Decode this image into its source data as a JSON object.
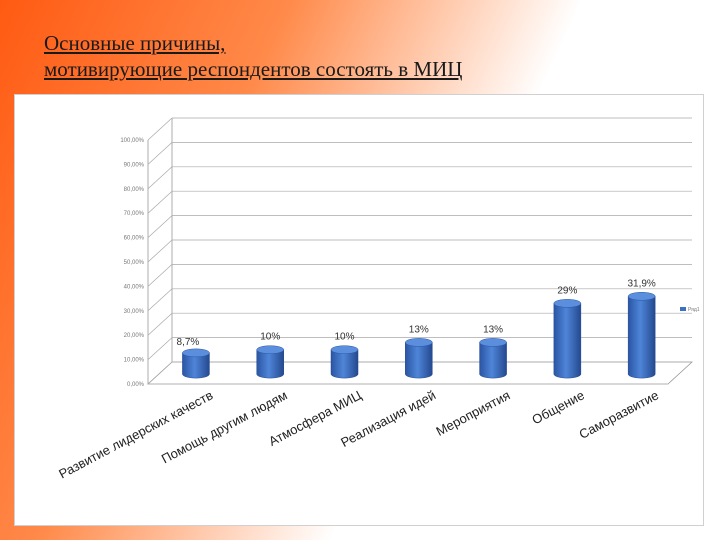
{
  "title": {
    "line1": "Основные причины,",
    "line2": "мотивирующие респондентов состоять в МИЦ"
  },
  "chart_data": {
    "type": "bar",
    "style": "3d-cylinder",
    "categories": [
      "Развитие лидерских качеств",
      "Помощь другим людям",
      "Атмосфера МИЦ",
      "Реализация идей",
      "Мероприятия",
      "Общение",
      "Саморазвитие"
    ],
    "values": [
      8.7,
      10,
      10,
      13,
      13,
      29,
      31.9
    ],
    "data_labels": [
      "8,7%",
      "10%",
      "10%",
      "13%",
      "13%",
      "29%",
      "31,9%"
    ],
    "ylim": [
      0,
      100
    ],
    "yticks": [
      "0,00%",
      "10,00%",
      "20,00%",
      "30,00%",
      "40,00%",
      "50,00%",
      "60,00%",
      "70,00%",
      "80,00%",
      "90,00%",
      "100,00%"
    ],
    "series": [
      {
        "name": "Ряд1",
        "values": [
          8.7,
          10,
          10,
          13,
          13,
          29,
          31.9
        ]
      }
    ],
    "legend_position": "right",
    "bar_color": "#3d6fc4",
    "grid": true
  }
}
